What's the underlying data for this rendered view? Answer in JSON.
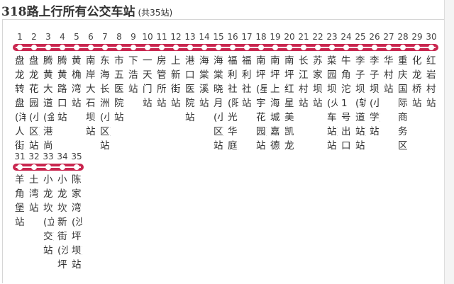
{
  "title": "318路上行所有公交车站",
  "count_label": "(共35站)",
  "route_color": "#c9264f",
  "stations": [
    {
      "no": "1",
      "name": "盘龙转盘(洋人街)"
    },
    {
      "no": "2",
      "name": "盘龙花园(小区)站"
    },
    {
      "no": "3",
      "name": "腾黄大道(金港尚"
    },
    {
      "no": "4",
      "name": "腾黄路口站"
    },
    {
      "no": "5",
      "name": "黄桷湾站"
    },
    {
      "no": "6",
      "name": "南岸大石坝站"
    },
    {
      "no": "7",
      "name": "东海长洲(小区)站"
    },
    {
      "no": "8",
      "name": "市五医院站"
    },
    {
      "no": "9",
      "name": "下浩站"
    },
    {
      "no": "10",
      "name": "一天门站"
    },
    {
      "no": "11",
      "name": "房管所站"
    },
    {
      "no": "12",
      "name": "上新街站"
    },
    {
      "no": "13",
      "name": "港口医院站"
    },
    {
      "no": "14",
      "name": "海棠溪站"
    },
    {
      "no": "15",
      "name": "海棠晓月(小区)站"
    },
    {
      "no": "16",
      "name": "福利社(阳光华庭)"
    },
    {
      "no": "17",
      "name": "福利社站"
    },
    {
      "no": "18",
      "name": "南坪(星宇花园)站"
    },
    {
      "no": "19",
      "name": "南坪上海城嘉德"
    },
    {
      "no": "20",
      "name": "南坪红星美凯龙"
    },
    {
      "no": "21",
      "name": "长江村站"
    },
    {
      "no": "22",
      "name": "苏家坝站"
    },
    {
      "no": "23",
      "name": "菜园坝(火车站)站"
    },
    {
      "no": "24",
      "name": "牛角沱1号出口(立"
    },
    {
      "no": "25",
      "name": "李子坝(轨道站)站"
    },
    {
      "no": "26",
      "name": "李子坝(小学)站"
    },
    {
      "no": "27",
      "name": "华村站"
    },
    {
      "no": "28",
      "name": "重庆国际商务区"
    },
    {
      "no": "29",
      "name": "化龙桥站"
    },
    {
      "no": "30",
      "name": "红岩村站"
    },
    {
      "no": "31",
      "name": "羊角堡站"
    },
    {
      "no": "32",
      "name": "土湾站"
    },
    {
      "no": "33",
      "name": "小龙坎(立交)站"
    },
    {
      "no": "34",
      "name": "小龙坎新街(沙坪"
    },
    {
      "no": "35",
      "name": "陈家湾(沙坪坝)站"
    }
  ]
}
